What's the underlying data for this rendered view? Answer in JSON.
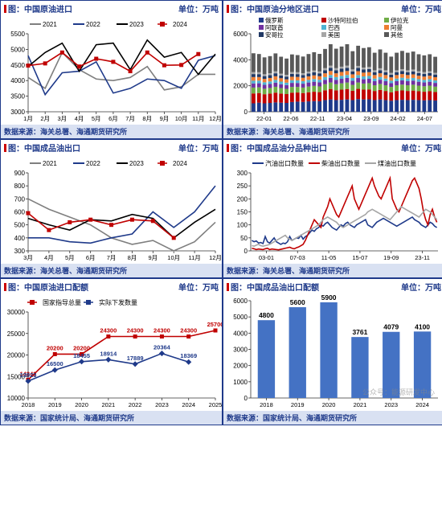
{
  "panels": [
    {
      "id": "p1",
      "title": "图：中国原油进口",
      "unit": "单位：万吨",
      "source": "数据来源：海关总署、海通期货研究所",
      "type": "line",
      "xlim": [
        1,
        12
      ],
      "xticks": [
        1,
        2,
        3,
        4,
        5,
        6,
        7,
        8,
        9,
        10,
        11,
        12
      ],
      "xticklabels": [
        "1月",
        "2月",
        "3月",
        "4月",
        "5月",
        "6月",
        "7月",
        "8月",
        "9月",
        "10月",
        "11月",
        "12月"
      ],
      "ylim": [
        3000,
        5500
      ],
      "ytick_step": 500,
      "colors": {
        "2021": "#7f7f7f",
        "2022": "#1f3a8a",
        "2023": "#000000",
        "2024": "#c00000"
      },
      "marker": {
        "2024": "square"
      },
      "series": {
        "2021": [
          4100,
          3750,
          4900,
          4350,
          4050,
          4000,
          4100,
          4450,
          3700,
          3800,
          4200,
          4200
        ],
        "2022": [
          4800,
          3550,
          4250,
          4300,
          4600,
          3600,
          3750,
          4050,
          4000,
          3750,
          4650,
          4800
        ],
        "2023": [
          4450,
          4900,
          5200,
          4300,
          5150,
          5200,
          4350,
          5300,
          4750,
          4900,
          4200,
          4850
        ],
        "2024": [
          4480,
          4550,
          4900,
          4450,
          4700,
          4600,
          4300,
          4900,
          4490,
          4500,
          4850,
          null
        ]
      },
      "legend": [
        "2021",
        "2022",
        "2023",
        "2024"
      ],
      "legend_pos": "top-inside"
    },
    {
      "id": "p2",
      "title": "图：中国原油分地区进口",
      "unit": "单位：万吨",
      "source": "数据来源：海关总署、海通期货研究所",
      "type": "stacked-bar",
      "ylim": [
        0,
        6000
      ],
      "ytick_step": 2000,
      "xticklabels": [
        "22-01",
        "22-06",
        "22-11",
        "23-04",
        "23-09",
        "24-02",
        "24-07"
      ],
      "categories_full": [
        "22-01",
        "22-02",
        "22-03",
        "22-04",
        "22-05",
        "22-06",
        "22-07",
        "22-08",
        "22-09",
        "22-10",
        "22-11",
        "22-12",
        "23-01",
        "23-02",
        "23-03",
        "23-04",
        "23-05",
        "23-06",
        "23-07",
        "23-08",
        "23-09",
        "23-10",
        "23-11",
        "23-12",
        "24-01",
        "24-02",
        "24-03",
        "24-04",
        "24-05",
        "24-06",
        "24-07",
        "24-08",
        "24-09",
        "24-10"
      ],
      "legend": [
        "俄罗斯",
        "沙特阿拉伯",
        "伊拉克",
        "阿联酋",
        "巴西",
        "阿曼",
        "安哥拉",
        "美国",
        "其他"
      ],
      "colors_stack": {
        "俄罗斯": "#1f3a8a",
        "沙特阿拉伯": "#c00000",
        "伊拉克": "#70ad47",
        "阿联酋": "#7030a0",
        "巴西": "#4eb3d3",
        "阿曼": "#ed7d31",
        "安哥拉": "#203864",
        "美国": "#a6a6a6",
        "其他": "#595959"
      },
      "stack_values": {
        "俄罗斯": [
          650,
          700,
          650,
          680,
          720,
          700,
          680,
          750,
          780,
          760,
          800,
          820,
          810,
          900,
          950,
          900,
          920,
          950,
          900,
          980,
          950,
          960,
          900,
          950,
          900,
          850,
          900,
          920,
          900,
          920,
          900,
          880,
          900,
          870
        ],
        "沙特阿拉伯": [
          760,
          740,
          700,
          720,
          750,
          700,
          680,
          720,
          700,
          680,
          700,
          720,
          700,
          750,
          800,
          750,
          780,
          800,
          720,
          780,
          750,
          760,
          700,
          730,
          700,
          650,
          700,
          720,
          700,
          710,
          680,
          660,
          680,
          650
        ],
        "伊拉克": [
          450,
          440,
          420,
          430,
          450,
          420,
          400,
          440,
          430,
          420,
          440,
          450,
          440,
          470,
          500,
          470,
          490,
          500,
          450,
          490,
          470,
          480,
          440,
          460,
          440,
          410,
          440,
          450,
          440,
          450,
          430,
          420,
          430,
          410
        ],
        "阿联酋": [
          320,
          310,
          300,
          305,
          320,
          300,
          290,
          310,
          305,
          300,
          310,
          320,
          310,
          330,
          350,
          330,
          345,
          350,
          320,
          345,
          330,
          335,
          310,
          325,
          310,
          290,
          310,
          320,
          310,
          315,
          300,
          295,
          300,
          290
        ],
        "巴西": [
          210,
          205,
          200,
          200,
          210,
          200,
          190,
          205,
          200,
          195,
          205,
          210,
          205,
          220,
          230,
          220,
          228,
          230,
          210,
          228,
          220,
          222,
          205,
          215,
          205,
          190,
          205,
          210,
          205,
          208,
          200,
          195,
          200,
          190
        ],
        "阿曼": [
          280,
          275,
          260,
          265,
          280,
          260,
          255,
          270,
          265,
          260,
          270,
          280,
          270,
          290,
          305,
          290,
          300,
          305,
          280,
          300,
          290,
          292,
          270,
          282,
          270,
          255,
          270,
          280,
          270,
          275,
          260,
          258,
          260,
          250
        ],
        "安哥拉": [
          230,
          225,
          215,
          218,
          230,
          215,
          210,
          222,
          218,
          213,
          222,
          230,
          222,
          238,
          250,
          238,
          246,
          250,
          230,
          246,
          238,
          240,
          222,
          232,
          222,
          210,
          222,
          230,
          222,
          226,
          215,
          212,
          215,
          205
        ],
        "美国": [
          150,
          148,
          140,
          142,
          150,
          140,
          138,
          145,
          142,
          140,
          145,
          150,
          145,
          155,
          162,
          155,
          160,
          162,
          150,
          160,
          155,
          157,
          145,
          152,
          145,
          138,
          145,
          150,
          145,
          148,
          140,
          138,
          140,
          135
        ],
        "其他": [
          1450,
          1400,
          1300,
          1320,
          1380,
          1300,
          1250,
          1350,
          1320,
          1280,
          1350,
          1400,
          1350,
          1480,
          1650,
          1500,
          1550,
          1650,
          1400,
          1550,
          1500,
          1520,
          1350,
          1450,
          1350,
          1250,
          1350,
          1400,
          1350,
          1380,
          1300,
          1280,
          1300,
          1230
        ]
      }
    },
    {
      "id": "p3",
      "title": "图：中国成品油出口",
      "unit": "单位：万吨",
      "source": "数据来源：海关总署、海通期货研究所",
      "type": "line",
      "xlim": [
        3,
        12
      ],
      "xticks": [
        3,
        4,
        5,
        6,
        7,
        8,
        9,
        10,
        11,
        12
      ],
      "xticklabels": [
        "3月",
        "4月",
        "5月",
        "6月",
        "7月",
        "8月",
        "9月",
        "10月",
        "11月",
        "12月"
      ],
      "ylim": [
        300,
        900
      ],
      "ytick_step": 100,
      "colors": {
        "2021": "#7f7f7f",
        "2022": "#1f3a8a",
        "2023": "#000000",
        "2024": "#c00000"
      },
      "marker": {
        "2024": "square"
      },
      "series": {
        "2021": [
          700,
          620,
          560,
          500,
          400,
          350,
          380,
          300,
          370,
          520
        ],
        "2022": [
          400,
          400,
          370,
          360,
          400,
          430,
          600,
          480,
          600,
          800
        ],
        "2023": [
          550,
          500,
          460,
          540,
          530,
          580,
          550,
          400,
          520,
          620
        ],
        "2024": [
          590,
          460,
          520,
          540,
          500,
          540,
          530,
          400,
          null,
          null
        ]
      },
      "legend": [
        "2021",
        "2022",
        "2023",
        "2024"
      ],
      "legend_pos": "top-inside"
    },
    {
      "id": "p4",
      "title": "图：中国成品油分品种出口",
      "unit": "单位：万吨",
      "source": "数据来源：海关总署、海通期货研究所",
      "type": "line",
      "ylim": [
        0,
        300
      ],
      "ytick_step": 50,
      "xticklabels": [
        "03-01",
        "07-03",
        "11-05",
        "15-07",
        "19-09",
        "23-11"
      ],
      "colors_line": {
        "汽油出口数量": "#1f3a8a",
        "柴油出口数量": "#c00000",
        "煤油出口数量": "#a6a6a6"
      },
      "legend": [
        "汽油出口数量",
        "柴油出口数量",
        "煤油出口数量"
      ],
      "n_points": 84,
      "series": {
        "汽油出口数量": [
          40,
          35,
          38,
          30,
          32,
          28,
          55,
          35,
          30,
          40,
          50,
          35,
          30,
          25,
          30,
          28,
          35,
          55,
          40,
          45,
          50,
          48,
          60,
          45,
          55,
          60,
          70,
          80,
          75,
          85,
          90,
          100,
          95,
          105,
          110,
          100,
          90,
          85,
          80,
          90,
          100,
          95,
          105,
          110,
          100,
          95,
          90,
          100,
          105,
          110,
          115,
          120,
          100,
          95,
          90,
          100,
          110,
          115,
          120,
          125,
          120,
          115,
          110,
          105,
          100,
          95,
          100,
          105,
          110,
          115,
          120,
          125,
          130,
          120,
          115,
          110,
          100,
          95,
          90,
          100,
          110,
          105,
          95,
          90
        ],
        "柴油出口数量": [
          10,
          8,
          5,
          7,
          6,
          5,
          8,
          10,
          5,
          7,
          6,
          5,
          4,
          6,
          8,
          10,
          12,
          14,
          10,
          8,
          12,
          15,
          20,
          25,
          40,
          60,
          80,
          100,
          120,
          110,
          100,
          90,
          130,
          150,
          170,
          200,
          180,
          160,
          140,
          130,
          150,
          170,
          190,
          210,
          230,
          250,
          200,
          180,
          160,
          180,
          200,
          220,
          240,
          260,
          280,
          250,
          230,
          210,
          200,
          220,
          240,
          260,
          280,
          200,
          180,
          160,
          150,
          170,
          190,
          210,
          230,
          250,
          270,
          280,
          260,
          240,
          200,
          150,
          120,
          100,
          140,
          160,
          130,
          110
        ],
        "煤油出口数量": [
          20,
          18,
          22,
          25,
          20,
          18,
          20,
          22,
          25,
          30,
          35,
          40,
          45,
          50,
          55,
          60,
          50,
          45,
          40,
          45,
          50,
          55,
          60,
          65,
          70,
          75,
          80,
          85,
          90,
          95,
          100,
          110,
          120,
          125,
          130,
          125,
          120,
          115,
          110,
          100,
          95,
          90,
          95,
          100,
          105,
          110,
          115,
          120,
          125,
          130,
          135,
          140,
          150,
          155,
          160,
          155,
          150,
          145,
          140,
          135,
          130,
          125,
          120,
          130,
          140,
          150,
          160,
          170,
          165,
          160,
          155,
          150,
          145,
          140,
          135,
          130,
          140,
          150,
          160,
          155,
          150,
          140,
          130,
          120
        ]
      }
    },
    {
      "id": "p5",
      "title": "图：中国原油进口配额",
      "unit": "单位：万吨",
      "source": "数据来源：国家统计局、海通期货研究所",
      "type": "line-marker",
      "xlim": [
        2018,
        2025
      ],
      "xticks": [
        2018,
        2019,
        2020,
        2021,
        2022,
        2023,
        2024,
        2025
      ],
      "ylim": [
        10000,
        30000
      ],
      "ytick_step": 5000,
      "legend": [
        "国家指导总量",
        "实际下发数量"
      ],
      "colors_line": {
        "国家指导总量": "#c00000",
        "实际下发数量": "#1f3a8a"
      },
      "markers": {
        "国家指导总量": "square",
        "实际下发数量": "diamond"
      },
      "series": {
        "国家指导总量": [
          14242,
          20200,
          20200,
          24300,
          24300,
          24300,
          24300,
          25700
        ],
        "实际下发数量": [
          13923,
          16500,
          18455,
          18914,
          17889,
          20364,
          18369,
          null
        ]
      },
      "labels_on_points": true
    },
    {
      "id": "p6",
      "title": "图：中国成品油出口配额",
      "unit": "单位：万吨",
      "source": "数据来源：国家统计局、海通期货研究所",
      "type": "bar",
      "xticks": [
        2018,
        2019,
        2020,
        2021,
        2023,
        2024
      ],
      "ylim": [
        0,
        6000
      ],
      "ytick_step": 1000,
      "bar_color": "#4472c4",
      "values": {
        "2018": 4800,
        "2019": 5600,
        "2020": 5900,
        "2021": 3761,
        "2023": 4079,
        "2024": 4100
      },
      "labels_on_bars": true,
      "watermark": "公众号：能源研发中心"
    }
  ]
}
